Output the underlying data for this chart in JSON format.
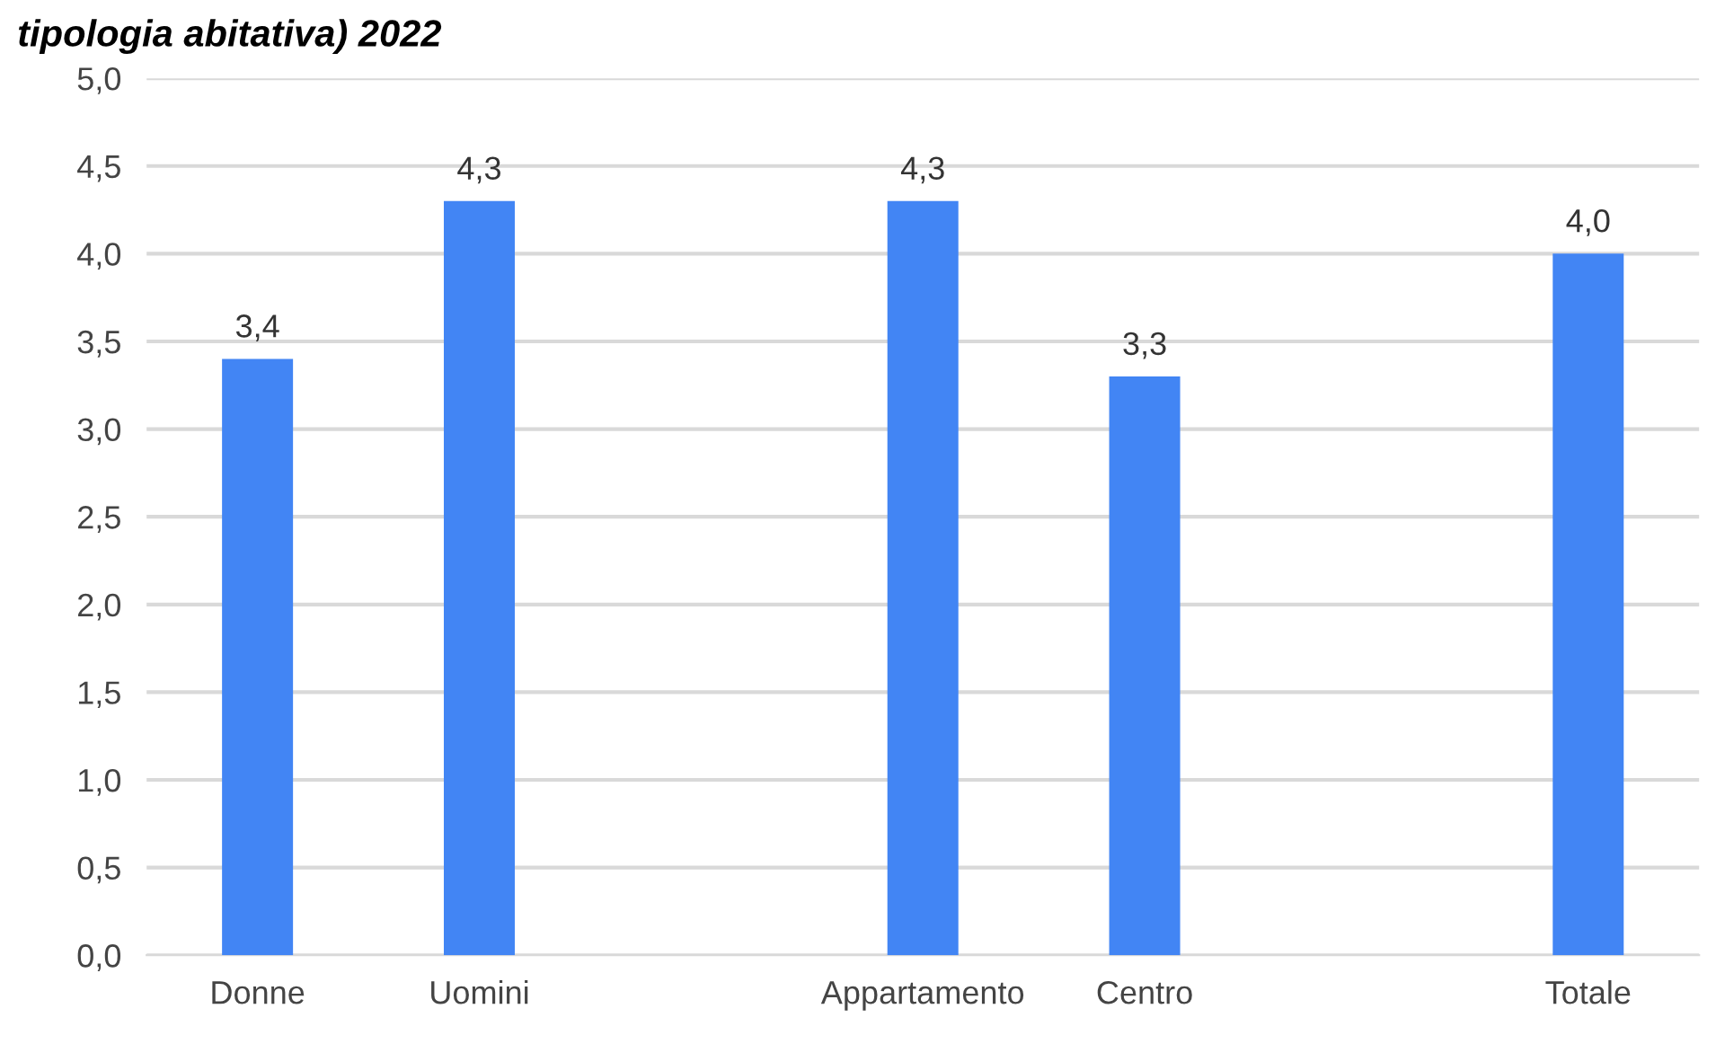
{
  "chart_data": {
    "type": "bar",
    "title": "tipologia abitativa) 2022",
    "categories": [
      "Donne",
      "Uomini",
      null,
      "Appartamento",
      "Centro",
      null,
      "Totale"
    ],
    "values": [
      3.4,
      4.3,
      null,
      4.3,
      3.3,
      null,
      4.0
    ],
    "value_labels": [
      "3,4",
      "4,3",
      null,
      "4,3",
      "3,3",
      null,
      "4,0"
    ],
    "color": "#4285f4",
    "ylim": [
      0,
      5
    ],
    "yticks": [
      {
        "value": 0,
        "label": "0,0"
      },
      {
        "value": 0.5,
        "label": "0,5"
      },
      {
        "value": 1,
        "label": "1,0"
      },
      {
        "value": 1.5,
        "label": "1,5"
      },
      {
        "value": 2,
        "label": "2,0"
      },
      {
        "value": 2.5,
        "label": "2,5"
      },
      {
        "value": 3,
        "label": "3,0"
      },
      {
        "value": 3.5,
        "label": "3,5"
      },
      {
        "value": 4,
        "label": "4,0"
      },
      {
        "value": 4.5,
        "label": "4,5"
      },
      {
        "value": 5,
        "label": "5,0"
      }
    ],
    "grid": "y"
  }
}
